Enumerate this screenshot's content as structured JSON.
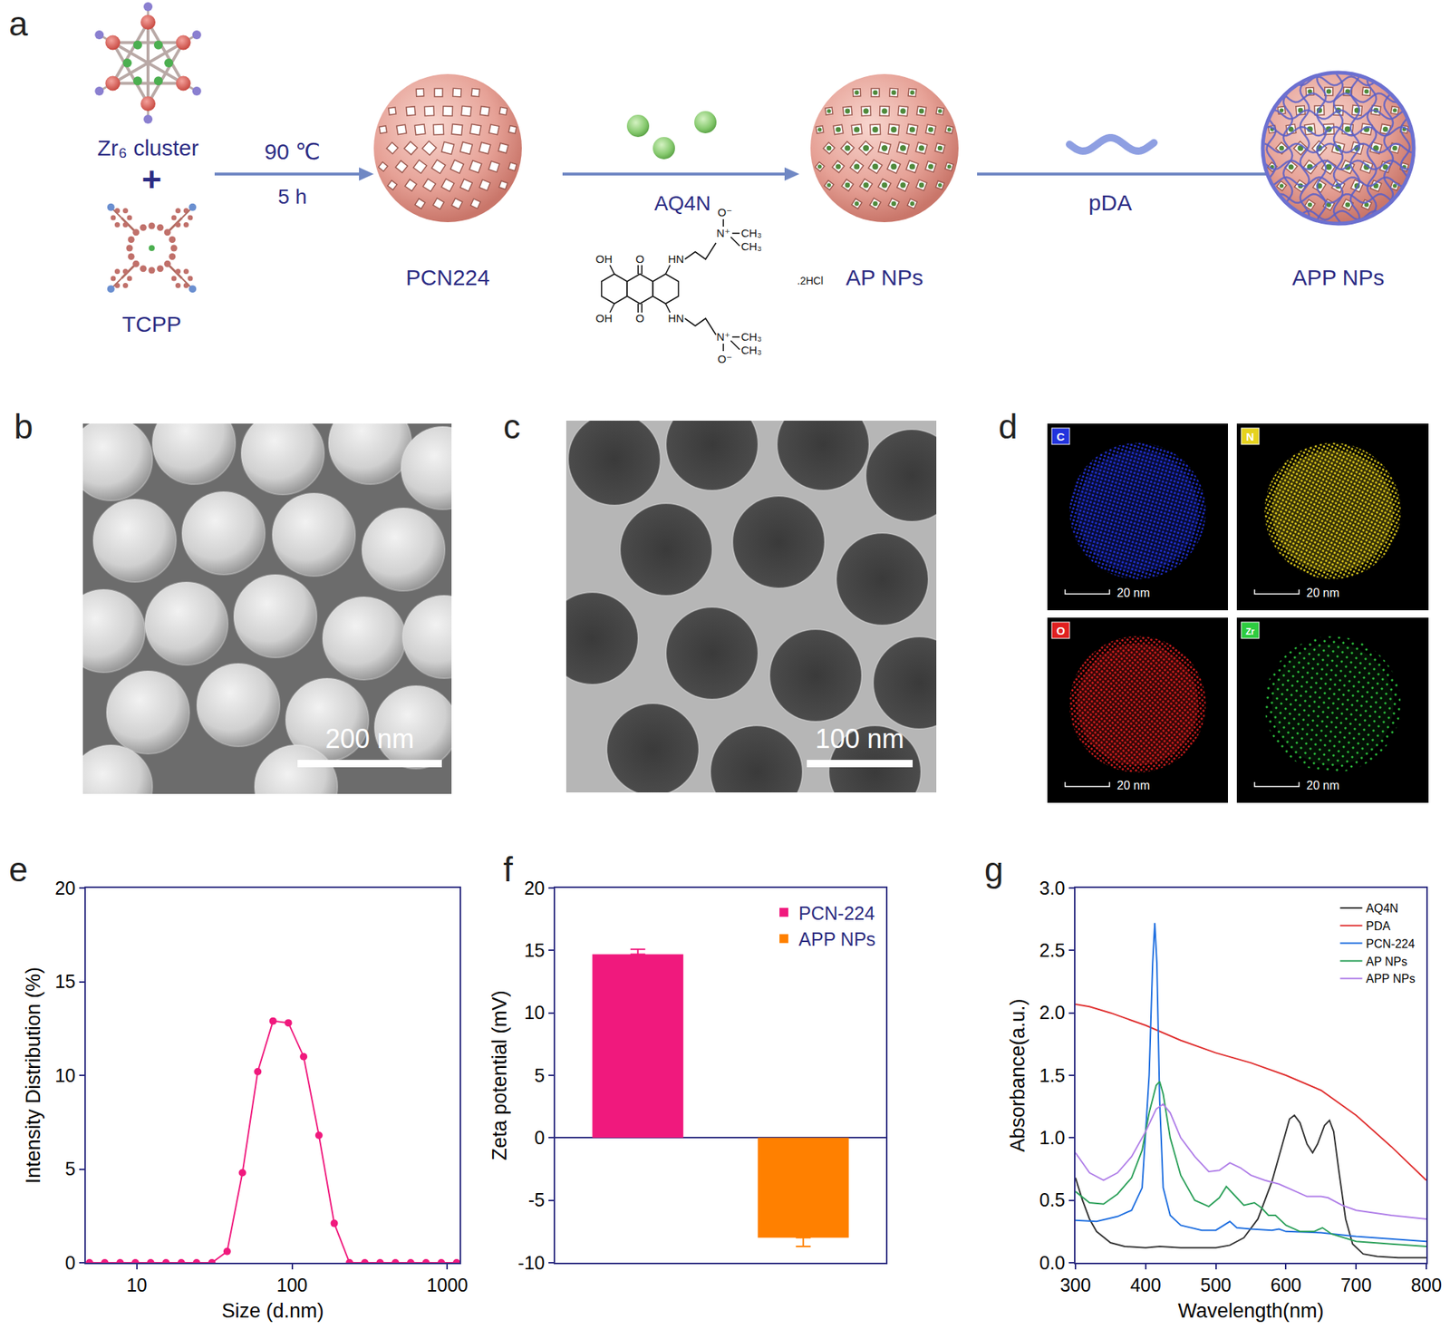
{
  "figure": {
    "panels": [
      "a",
      "b",
      "c",
      "d"
    ],
    "scheme": {
      "reactant_1": "Zr₆ cluster",
      "plus": "+",
      "reactant_2": "TCPP",
      "step1_conditions": [
        "90 ℃",
        "5 h"
      ],
      "product_1": "PCN224",
      "step2_reagent": "AQ4N",
      "structure_labels": {
        "hydroxyl": "OH",
        "carbonyl": "O",
        "amine": "HN",
        "cation": "N⁺",
        "oxide": "O⁻",
        "methyl": "CH₃"
      },
      "salt": ".2HCl",
      "product_2": "AP NPs",
      "step3_reagent": "pDA",
      "product_3": "APP NPs"
    },
    "sem": {
      "scale_bar": "200 nm"
    },
    "tem": {
      "scale_bar": "100 nm"
    },
    "eds_maps": [
      {
        "element": "C",
        "color": "#2233dd",
        "scale_bar": "20 nm"
      },
      {
        "element": "N",
        "color": "#e6d21e",
        "scale_bar": "20 nm"
      },
      {
        "element": "O",
        "color": "#e02020",
        "scale_bar": "20 nm"
      },
      {
        "element": "Zr",
        "color": "#2ecc40",
        "scale_bar": "20 nm"
      }
    ]
  },
  "chart_data": [
    {
      "panel": "e",
      "type": "line",
      "marker": "circle",
      "color": "#f0197d",
      "x": [
        4.96,
        6.22,
        7.81,
        9.79,
        12.29,
        15.42,
        19.35,
        24.27,
        30.45,
        38.19,
        47.91,
        60.12,
        75.42,
        94.62,
        118.7,
        148.9,
        186.9,
        234.4,
        294.1,
        368.9,
        462.9,
        580.8,
        728.8,
        914.1,
        1147
      ],
      "values": [
        0,
        0,
        0,
        0,
        0,
        0,
        0,
        0,
        0,
        0.6,
        4.8,
        10.2,
        12.9,
        12.8,
        11.0,
        6.8,
        2.1,
        0,
        0,
        0,
        0,
        0,
        0,
        0,
        0
      ],
      "log": "x",
      "xlim": [
        4.7,
        1200
      ],
      "xticks": [
        10,
        100,
        1000
      ],
      "ylim": [
        0,
        20
      ],
      "yticks": [
        0,
        5,
        10,
        15,
        20
      ],
      "x_label": "Size (d.nm)",
      "y_label": "Intensity Distribution (%)",
      "grid": false
    },
    {
      "panel": "f",
      "type": "bar",
      "categories": [
        "PCN-224",
        "APP NPs"
      ],
      "values": [
        14.7,
        -8.0
      ],
      "errors": [
        0.4,
        0.7
      ],
      "colors": [
        "#f0197d",
        "#ff8000"
      ],
      "ylim": [
        -10,
        20
      ],
      "yticks": [
        -10,
        -5,
        0,
        5,
        10,
        15,
        20
      ],
      "y_label": "Zeta potential (mV)",
      "legend": "top-right",
      "tick_labels": "y",
      "grid": false
    },
    {
      "panel": "g",
      "type": "line",
      "series": [
        {
          "name": "AQ4N",
          "color": "#333333",
          "x": [
            300,
            310,
            320,
            330,
            350,
            370,
            400,
            420,
            450,
            480,
            500,
            520,
            540,
            560,
            580,
            595,
            605,
            612,
            620,
            630,
            638,
            645,
            655,
            662,
            668,
            675,
            685,
            695,
            710,
            730,
            760,
            800
          ],
          "values": [
            0.68,
            0.5,
            0.35,
            0.25,
            0.16,
            0.13,
            0.12,
            0.13,
            0.12,
            0.12,
            0.12,
            0.14,
            0.2,
            0.35,
            0.65,
            0.95,
            1.15,
            1.18,
            1.12,
            0.95,
            0.88,
            0.95,
            1.1,
            1.14,
            1.05,
            0.75,
            0.35,
            0.15,
            0.07,
            0.05,
            0.04,
            0.04
          ]
        },
        {
          "name": "PDA",
          "color": "#e03030",
          "x": [
            300,
            320,
            350,
            400,
            450,
            500,
            550,
            600,
            650,
            700,
            750,
            800
          ],
          "values": [
            2.07,
            2.05,
            2.0,
            1.9,
            1.78,
            1.68,
            1.6,
            1.5,
            1.38,
            1.18,
            0.93,
            0.66
          ]
        },
        {
          "name": "PCN-224",
          "color": "#1f6fe0",
          "x": [
            300,
            330,
            360,
            380,
            395,
            405,
            410,
            413,
            416,
            420,
            425,
            435,
            450,
            480,
            500,
            515,
            520,
            530,
            550,
            580,
            590,
            600,
            650,
            700,
            750,
            800
          ],
          "values": [
            0.34,
            0.33,
            0.37,
            0.42,
            0.6,
            1.5,
            2.4,
            2.72,
            2.4,
            1.3,
            0.6,
            0.38,
            0.3,
            0.26,
            0.26,
            0.31,
            0.33,
            0.28,
            0.27,
            0.26,
            0.27,
            0.25,
            0.24,
            0.21,
            0.19,
            0.17
          ]
        },
        {
          "name": "AP NPs",
          "color": "#2ca05a",
          "x": [
            300,
            320,
            340,
            360,
            380,
            395,
            405,
            415,
            420,
            425,
            435,
            450,
            470,
            490,
            505,
            515,
            525,
            540,
            555,
            565,
            575,
            585,
            600,
            620,
            640,
            652,
            665,
            700,
            750,
            800
          ],
          "values": [
            0.57,
            0.48,
            0.47,
            0.55,
            0.68,
            0.9,
            1.2,
            1.42,
            1.45,
            1.35,
            1.0,
            0.7,
            0.5,
            0.45,
            0.52,
            0.61,
            0.55,
            0.46,
            0.48,
            0.44,
            0.38,
            0.38,
            0.3,
            0.25,
            0.25,
            0.28,
            0.23,
            0.17,
            0.15,
            0.13
          ]
        },
        {
          "name": "APP NPs",
          "color": "#b07fe8",
          "x": [
            300,
            320,
            340,
            360,
            380,
            400,
            415,
            425,
            435,
            450,
            470,
            490,
            505,
            520,
            535,
            550,
            570,
            590,
            610,
            630,
            650,
            660,
            680,
            700,
            750,
            800
          ],
          "values": [
            0.88,
            0.72,
            0.66,
            0.72,
            0.85,
            1.05,
            1.23,
            1.27,
            1.2,
            1.0,
            0.85,
            0.73,
            0.74,
            0.8,
            0.76,
            0.7,
            0.66,
            0.63,
            0.58,
            0.53,
            0.53,
            0.52,
            0.46,
            0.42,
            0.38,
            0.35
          ]
        }
      ],
      "xlim": [
        300,
        800
      ],
      "xticks": [
        300,
        400,
        500,
        600,
        700,
        800
      ],
      "ylim": [
        0,
        3
      ],
      "yticks": [
        {
          "value": 0,
          "label": "0.0"
        },
        0.5,
        {
          "value": 1,
          "label": "1.0"
        },
        1.5,
        {
          "value": 2,
          "label": "2.0"
        },
        2.5,
        {
          "value": 3,
          "label": "3.0"
        }
      ],
      "x_label": "Wavelength(nm)",
      "y_label": "Absorbance(a.u.)",
      "legend": "top-right",
      "grid": false
    }
  ]
}
